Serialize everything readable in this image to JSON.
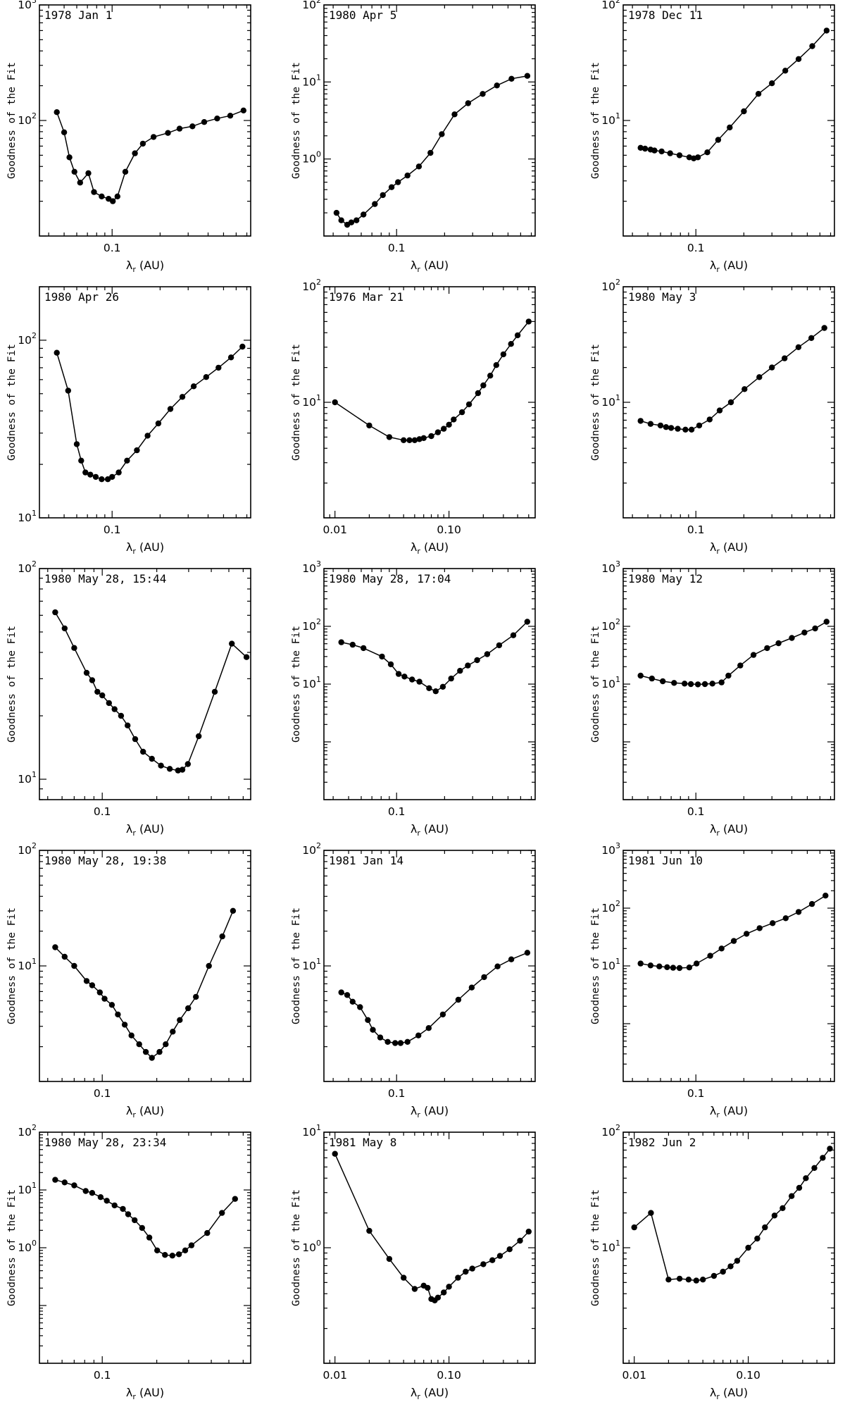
{
  "chart_data": [
    {
      "type": "line",
      "title": "1978 Jan  1",
      "xlabel": "λr (AU)",
      "ylabel": "Goodness of the Fit",
      "xscale": "log",
      "yscale": "log",
      "xlim": [
        0.035,
        0.74
      ],
      "ylim": [
        10,
        1000
      ],
      "xticks": [
        {
          "v": 0.1,
          "label": "0.1"
        }
      ],
      "yticks": [
        {
          "b": "10",
          "e": "2",
          "v": 100
        },
        {
          "b": "10",
          "e": "3",
          "v": 1000
        }
      ],
      "x": [
        0.045,
        0.05,
        0.054,
        0.058,
        0.063,
        0.071,
        0.077,
        0.086,
        0.095,
        0.101,
        0.108,
        0.121,
        0.139,
        0.156,
        0.182,
        0.224,
        0.265,
        0.319,
        0.378,
        0.456,
        0.551,
        0.667
      ],
      "y": [
        118,
        79,
        48,
        36,
        29,
        35,
        24,
        22,
        21,
        20,
        22,
        36,
        52,
        63,
        72,
        78,
        85,
        89,
        97,
        104,
        110,
        122
      ]
    },
    {
      "type": "line",
      "title": "1980 Apr  5",
      "xlabel": "λr (AU)",
      "ylabel": "Goodness of the Fit",
      "xscale": "log",
      "yscale": "log",
      "xlim": [
        0.035,
        0.74
      ],
      "ylim": [
        0.1,
        100
      ],
      "xticks": [
        {
          "v": 0.1,
          "label": "0.1"
        }
      ],
      "yticks": [
        {
          "b": "10",
          "e": "0",
          "v": 1
        },
        {
          "b": "10",
          "e": "1",
          "v": 10
        },
        {
          "b": "10",
          "e": "2",
          "v": 100
        }
      ],
      "x": [
        0.042,
        0.045,
        0.049,
        0.052,
        0.056,
        0.062,
        0.073,
        0.082,
        0.093,
        0.102,
        0.117,
        0.138,
        0.163,
        0.192,
        0.231,
        0.281,
        0.347,
        0.426,
        0.526,
        0.661
      ],
      "y": [
        0.2,
        0.16,
        0.14,
        0.15,
        0.16,
        0.19,
        0.26,
        0.34,
        0.43,
        0.5,
        0.61,
        0.8,
        1.2,
        2.1,
        3.8,
        5.3,
        7,
        9,
        11,
        12
      ]
    },
    {
      "type": "line",
      "title": "1978 Dec 11",
      "xlabel": "λr (AU)",
      "ylabel": "Goodness of the Fit",
      "xscale": "log",
      "yscale": "log",
      "xlim": [
        0.035,
        0.74
      ],
      "ylim": [
        1,
        100
      ],
      "xticks": [
        {
          "v": 0.1,
          "label": "0.1"
        }
      ],
      "yticks": [
        {
          "b": "10",
          "e": "1",
          "v": 10
        },
        {
          "b": "10",
          "e": "2",
          "v": 100
        }
      ],
      "x": [
        0.045,
        0.048,
        0.052,
        0.055,
        0.061,
        0.069,
        0.079,
        0.091,
        0.097,
        0.103,
        0.118,
        0.138,
        0.163,
        0.2,
        0.247,
        0.3,
        0.364,
        0.441,
        0.537,
        0.661
      ],
      "y": [
        5.8,
        5.7,
        5.6,
        5.5,
        5.4,
        5.2,
        5.0,
        4.8,
        4.7,
        4.8,
        5.3,
        6.8,
        8.7,
        12,
        17,
        21,
        27,
        34,
        44,
        60
      ]
    },
    {
      "type": "line",
      "title": "1980 Apr 26",
      "xlabel": "λr (AU)",
      "ylabel": "Goodness of the Fit",
      "xscale": "log",
      "yscale": "log",
      "xlim": [
        0.035,
        0.74
      ],
      "ylim": [
        10,
        200
      ],
      "xticks": [
        {
          "v": 0.1,
          "label": "0.1"
        }
      ],
      "yticks": [
        {
          "b": "10",
          "e": "1",
          "v": 10
        },
        {
          "b": "10",
          "e": "2",
          "v": 100
        }
      ],
      "x": [
        0.045,
        0.053,
        0.06,
        0.064,
        0.068,
        0.073,
        0.079,
        0.086,
        0.094,
        0.1,
        0.11,
        0.124,
        0.143,
        0.167,
        0.195,
        0.232,
        0.276,
        0.325,
        0.389,
        0.465,
        0.557,
        0.657
      ],
      "y": [
        85,
        52,
        26,
        21,
        18,
        17.5,
        17,
        16.5,
        16.5,
        17,
        18,
        21,
        24,
        29,
        34,
        41,
        48,
        55,
        62,
        70,
        80,
        92
      ]
    },
    {
      "type": "line",
      "title": "1976 Mar 21",
      "xlabel": "λr (AU)",
      "ylabel": "Goodness of the Fit",
      "xscale": "log",
      "yscale": "log",
      "xlim": [
        0.008,
        0.57
      ],
      "ylim": [
        1,
        100
      ],
      "xticks": [
        {
          "v": 0.01,
          "label": "0.01"
        },
        {
          "v": 0.1,
          "label": "0.10"
        }
      ],
      "yticks": [
        {
          "b": "10",
          "e": "1",
          "v": 10
        },
        {
          "b": "10",
          "e": "2",
          "v": 100
        }
      ],
      "x": [
        0.01,
        0.02,
        0.03,
        0.04,
        0.045,
        0.05,
        0.055,
        0.06,
        0.07,
        0.08,
        0.09,
        0.1,
        0.11,
        0.13,
        0.15,
        0.18,
        0.2,
        0.23,
        0.26,
        0.3,
        0.35,
        0.4,
        0.5
      ],
      "y": [
        10,
        6.3,
        5,
        4.7,
        4.7,
        4.7,
        4.8,
        4.9,
        5.1,
        5.5,
        5.9,
        6.4,
        7.1,
        8.2,
        9.6,
        12,
        14,
        17,
        21,
        26,
        32,
        38,
        50
      ]
    },
    {
      "type": "line",
      "title": "1980 May  3",
      "xlabel": "λr (AU)",
      "ylabel": "Goodness of the Fit",
      "xscale": "log",
      "yscale": "log",
      "xlim": [
        0.035,
        0.74
      ],
      "ylim": [
        1,
        100
      ],
      "xticks": [
        {
          "v": 0.1,
          "label": "0.1"
        }
      ],
      "yticks": [
        {
          "b": "10",
          "e": "1",
          "v": 10
        },
        {
          "b": "10",
          "e": "2",
          "v": 100
        }
      ],
      "x": [
        0.045,
        0.052,
        0.06,
        0.065,
        0.07,
        0.077,
        0.086,
        0.094,
        0.105,
        0.122,
        0.141,
        0.166,
        0.202,
        0.25,
        0.3,
        0.36,
        0.44,
        0.53,
        0.64
      ],
      "y": [
        6.9,
        6.5,
        6.3,
        6.1,
        6.0,
        5.9,
        5.8,
        5.8,
        6.3,
        7.1,
        8.5,
        10,
        13,
        16.5,
        20,
        24,
        30,
        36,
        44
      ]
    },
    {
      "type": "line",
      "title": "1980 May 28, 15:44",
      "xlabel": "λr (AU)",
      "ylabel": "Goodness of the Fit",
      "xscale": "log",
      "yscale": "log",
      "xlim": [
        0.045,
        0.66
      ],
      "ylim": [
        8,
        100
      ],
      "xticks": [
        {
          "v": 0.1,
          "label": "0.1"
        }
      ],
      "yticks": [
        {
          "b": "10",
          "e": "1",
          "v": 10
        },
        {
          "b": "10",
          "e": "2",
          "v": 100
        }
      ],
      "x": [
        0.055,
        0.062,
        0.07,
        0.082,
        0.088,
        0.094,
        0.1,
        0.109,
        0.117,
        0.127,
        0.138,
        0.152,
        0.168,
        0.188,
        0.211,
        0.236,
        0.262,
        0.277,
        0.297,
        0.341,
        0.418,
        0.519,
        0.626
      ],
      "y": [
        62,
        52,
        42,
        32,
        29.5,
        26,
        25,
        23,
        21.5,
        20,
        18,
        15.5,
        13.5,
        12.5,
        11.6,
        11.2,
        11,
        11.1,
        11.8,
        16,
        26,
        44,
        38
      ]
    },
    {
      "type": "line",
      "title": "1980 May 28, 17:04",
      "xlabel": "λr (AU)",
      "ylabel": "Goodness of the Fit",
      "xscale": "log",
      "yscale": "log",
      "xlim": [
        0.035,
        0.74
      ],
      "ylim": [
        0.1,
        1000
      ],
      "xticks": [
        {
          "v": 0.1,
          "label": "0.1"
        }
      ],
      "yticks": [
        {
          "b": "10",
          "e": "1",
          "v": 10
        },
        {
          "b": "10",
          "e": "2",
          "v": 100
        },
        {
          "b": "10",
          "e": "3",
          "v": 1000
        }
      ],
      "x": [
        0.045,
        0.053,
        0.062,
        0.081,
        0.092,
        0.103,
        0.112,
        0.125,
        0.139,
        0.16,
        0.176,
        0.195,
        0.22,
        0.25,
        0.28,
        0.32,
        0.37,
        0.44,
        0.54,
        0.66
      ],
      "y": [
        53,
        48,
        42,
        30,
        22,
        15,
        13.5,
        12,
        11,
        8.5,
        7.5,
        9,
        12.5,
        17,
        21,
        26,
        33,
        47,
        70,
        120
      ]
    },
    {
      "type": "line",
      "title": "1980 May 12",
      "xlabel": "λr (AU)",
      "ylabel": "Goodness of the Fit",
      "xscale": "log",
      "yscale": "log",
      "xlim": [
        0.035,
        0.74
      ],
      "ylim": [
        0.1,
        1000
      ],
      "xticks": [
        {
          "v": 0.1,
          "label": "0.1"
        }
      ],
      "yticks": [
        {
          "b": "10",
          "e": "1",
          "v": 10
        },
        {
          "b": "10",
          "e": "2",
          "v": 100
        },
        {
          "b": "10",
          "e": "3",
          "v": 1000
        }
      ],
      "x": [
        0.045,
        0.053,
        0.062,
        0.073,
        0.085,
        0.093,
        0.103,
        0.114,
        0.127,
        0.145,
        0.16,
        0.19,
        0.23,
        0.28,
        0.33,
        0.4,
        0.48,
        0.56,
        0.66
      ],
      "y": [
        14,
        12.5,
        11.2,
        10.5,
        10.2,
        10,
        9.9,
        10,
        10.2,
        10.7,
        14,
        21,
        32,
        42,
        51,
        63,
        78,
        92,
        120
      ]
    },
    {
      "type": "line",
      "title": "1980 May 28, 19:38",
      "xlabel": "λr (AU)",
      "ylabel": "Goodness of the Fit",
      "xscale": "log",
      "yscale": "log",
      "xlim": [
        0.045,
        0.66
      ],
      "ylim": [
        1,
        100
      ],
      "xticks": [
        {
          "v": 0.1,
          "label": "0.1"
        }
      ],
      "yticks": [
        {
          "b": "10",
          "e": "1",
          "v": 10
        },
        {
          "b": "10",
          "e": "2",
          "v": 100
        }
      ],
      "x": [
        0.055,
        0.062,
        0.07,
        0.082,
        0.088,
        0.097,
        0.103,
        0.113,
        0.122,
        0.133,
        0.145,
        0.16,
        0.174,
        0.188,
        0.207,
        0.224,
        0.245,
        0.268,
        0.298,
        0.329,
        0.388,
        0.46,
        0.527
      ],
      "y": [
        14.5,
        12,
        10,
        7.4,
        6.8,
        5.9,
        5.2,
        4.6,
        3.8,
        3.1,
        2.5,
        2.1,
        1.8,
        1.6,
        1.8,
        2.1,
        2.7,
        3.4,
        4.3,
        5.4,
        10,
        18,
        30
      ]
    },
    {
      "type": "line",
      "title": "1981 Jan 14",
      "xlabel": "λr (AU)",
      "ylabel": "Goodness of the Fit",
      "xscale": "log",
      "yscale": "log",
      "xlim": [
        0.035,
        0.74
      ],
      "ylim": [
        1,
        100
      ],
      "xticks": [
        {
          "v": 0.1,
          "label": "0.1"
        }
      ],
      "yticks": [
        {
          "b": "10",
          "e": "1",
          "v": 10
        },
        {
          "b": "10",
          "e": "2",
          "v": 100
        }
      ],
      "x": [
        0.045,
        0.049,
        0.053,
        0.059,
        0.066,
        0.071,
        0.079,
        0.088,
        0.098,
        0.106,
        0.117,
        0.137,
        0.159,
        0.195,
        0.244,
        0.296,
        0.354,
        0.43,
        0.524,
        0.661
      ],
      "y": [
        5.9,
        5.6,
        4.9,
        4.4,
        3.4,
        2.8,
        2.4,
        2.2,
        2.15,
        2.15,
        2.2,
        2.5,
        2.9,
        3.8,
        5.1,
        6.5,
        8,
        9.9,
        11.4,
        13
      ]
    },
    {
      "type": "line",
      "title": "1981 Jun 10",
      "xlabel": "λr (AU)",
      "ylabel": "Goodness of the Fit",
      "xscale": "log",
      "yscale": "log",
      "xlim": [
        0.035,
        0.74
      ],
      "ylim": [
        0.1,
        1000
      ],
      "xticks": [
        {
          "v": 0.1,
          "label": "0.1"
        }
      ],
      "yticks": [
        {
          "b": "10",
          "e": "1",
          "v": 10
        },
        {
          "b": "10",
          "e": "2",
          "v": 100
        },
        {
          "b": "10",
          "e": "3",
          "v": 1000
        }
      ],
      "x": [
        0.045,
        0.052,
        0.059,
        0.066,
        0.072,
        0.079,
        0.091,
        0.101,
        0.123,
        0.145,
        0.173,
        0.208,
        0.251,
        0.303,
        0.366,
        0.441,
        0.535,
        0.65
      ],
      "y": [
        11,
        10.2,
        9.8,
        9.5,
        9.3,
        9.2,
        9.4,
        11,
        15,
        20,
        27,
        36,
        45,
        55,
        67,
        86,
        118,
        165
      ]
    },
    {
      "type": "line",
      "title": "1980 May 28, 23:34",
      "xlabel": "λr (AU)",
      "ylabel": "Goodness of the Fit",
      "xscale": "log",
      "yscale": "log",
      "xlim": [
        0.045,
        0.66
      ],
      "ylim": [
        0.01,
        100
      ],
      "xticks": [
        {
          "v": 0.1,
          "label": "0.1"
        }
      ],
      "yticks": [
        {
          "b": "10",
          "e": "0",
          "v": 1
        },
        {
          "b": "10",
          "e": "1",
          "v": 10
        },
        {
          "b": "10",
          "e": "2",
          "v": 100
        }
      ],
      "x": [
        0.055,
        0.062,
        0.07,
        0.081,
        0.088,
        0.098,
        0.106,
        0.117,
        0.13,
        0.139,
        0.151,
        0.166,
        0.182,
        0.201,
        0.222,
        0.244,
        0.265,
        0.287,
        0.311,
        0.38,
        0.458,
        0.541
      ],
      "y": [
        15,
        13.5,
        12,
        9.6,
        8.9,
        7.5,
        6.5,
        5.4,
        4.7,
        3.8,
        3.0,
        2.2,
        1.5,
        0.9,
        0.75,
        0.73,
        0.77,
        0.9,
        1.1,
        1.8,
        4,
        7
      ]
    },
    {
      "type": "line",
      "title": "1981 May  8",
      "xlabel": "λr (AU)",
      "ylabel": "Goodness of the Fit",
      "xscale": "log",
      "yscale": "log",
      "xlim": [
        0.008,
        0.57
      ],
      "ylim": [
        0.1,
        10
      ],
      "xticks": [
        {
          "v": 0.01,
          "label": "0.01"
        },
        {
          "v": 0.1,
          "label": "0.10"
        }
      ],
      "yticks": [
        {
          "b": "10",
          "e": "0",
          "v": 1
        },
        {
          "b": "10",
          "e": "1",
          "v": 10
        }
      ],
      "x": [
        0.01,
        0.02,
        0.03,
        0.04,
        0.05,
        0.06,
        0.065,
        0.07,
        0.075,
        0.08,
        0.09,
        0.1,
        0.12,
        0.14,
        0.16,
        0.2,
        0.24,
        0.28,
        0.34,
        0.42,
        0.5
      ],
      "y": [
        6.5,
        1.4,
        0.8,
        0.55,
        0.44,
        0.47,
        0.45,
        0.36,
        0.35,
        0.37,
        0.41,
        0.46,
        0.55,
        0.62,
        0.66,
        0.72,
        0.78,
        0.85,
        0.97,
        1.15,
        1.38
      ]
    },
    {
      "type": "line",
      "title": "1982 Jun  2",
      "xlabel": "λr (AU)",
      "ylabel": "Goodness of the Fit",
      "xscale": "log",
      "yscale": "log",
      "xlim": [
        0.008,
        0.57
      ],
      "ylim": [
        1,
        100
      ],
      "xticks": [
        {
          "v": 0.01,
          "label": "0.01"
        },
        {
          "v": 0.1,
          "label": "0.10"
        }
      ],
      "yticks": [
        {
          "b": "10",
          "e": "1",
          "v": 10
        },
        {
          "b": "10",
          "e": "2",
          "v": 100
        }
      ],
      "x": [
        0.01,
        0.014,
        0.02,
        0.025,
        0.03,
        0.035,
        0.04,
        0.05,
        0.06,
        0.07,
        0.08,
        0.1,
        0.12,
        0.14,
        0.17,
        0.2,
        0.24,
        0.28,
        0.32,
        0.38,
        0.45,
        0.52
      ],
      "y": [
        15,
        20,
        5.3,
        5.4,
        5.3,
        5.2,
        5.3,
        5.7,
        6.2,
        6.9,
        7.7,
        10,
        12,
        15,
        19,
        22,
        28,
        33,
        40,
        49,
        60,
        72
      ]
    }
  ]
}
